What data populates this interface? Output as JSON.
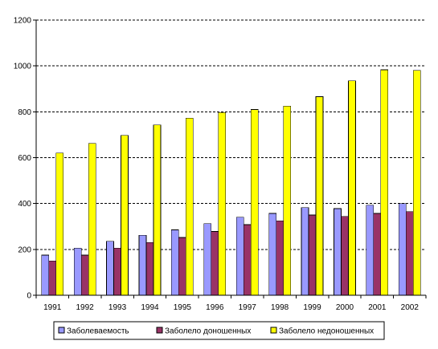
{
  "chart_data": {
    "type": "bar",
    "title": "",
    "xlabel": "",
    "ylabel": "",
    "categories": [
      "1991",
      "1992",
      "1993",
      "1994",
      "1995",
      "1996",
      "1997",
      "1998",
      "1999",
      "2000",
      "2001",
      "2002"
    ],
    "ylim": [
      0,
      1200
    ],
    "yticks": [
      0,
      200,
      400,
      600,
      800,
      1000,
      1200
    ],
    "grid": "horizontal dashed",
    "legend_position": "bottom",
    "series": [
      {
        "name": "Заболеваемость",
        "color": "#9999ff",
        "values": [
          175,
          205,
          235,
          262,
          285,
          312,
          340,
          357,
          382,
          378,
          393,
          400
        ]
      },
      {
        "name": "Заболело доношенных",
        "color": "#993366",
        "values": [
          150,
          175,
          205,
          230,
          252,
          278,
          308,
          324,
          350,
          344,
          357,
          365
        ]
      },
      {
        "name": "Заболело недоношенных",
        "color": "#ffff00",
        "values": [
          620,
          662,
          697,
          743,
          773,
          797,
          810,
          825,
          866,
          935,
          983,
          980
        ]
      }
    ]
  }
}
